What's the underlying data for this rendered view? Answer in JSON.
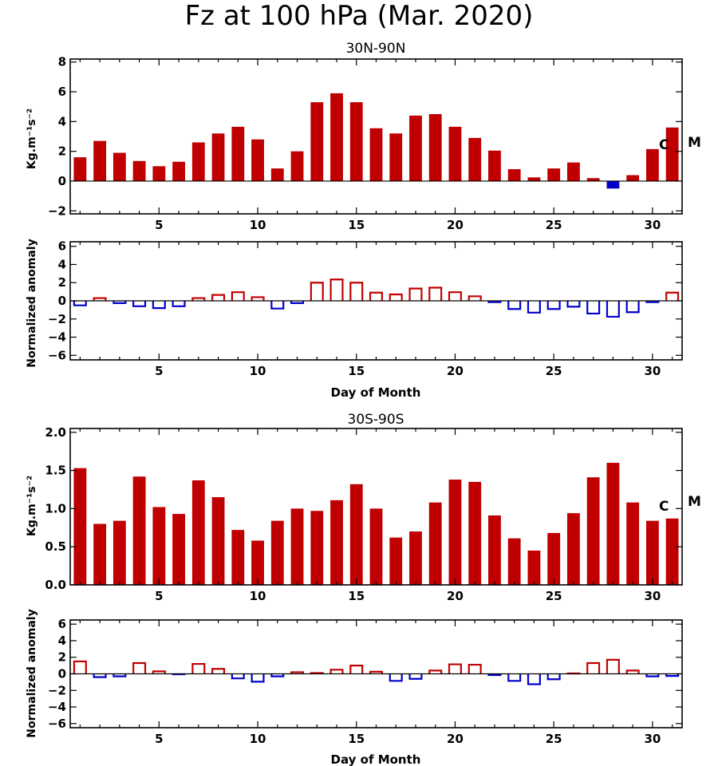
{
  "figure": {
    "title": "Fz at 100 hPa (Mar. 2020)"
  },
  "colors": {
    "positive": "#c00000",
    "negative": "#0000cc"
  },
  "chart_data": [
    {
      "id": "nh_fz",
      "type": "bar",
      "style": "filled",
      "title": "30N-90N",
      "xlabel": "",
      "ylabel": "Kg.m⁻¹s⁻²",
      "xlim": [
        0.5,
        31.5
      ],
      "ylim": [
        -2.2,
        8.2
      ],
      "x_ticks": [
        5,
        10,
        15,
        20,
        25,
        30
      ],
      "y_ticks": [
        -2,
        0,
        2,
        4,
        6,
        8
      ],
      "y_tick_labels": [
        "−2",
        "0",
        "2",
        "4",
        "6",
        "8"
      ],
      "x": [
        1,
        2,
        3,
        4,
        5,
        6,
        7,
        8,
        9,
        10,
        11,
        12,
        13,
        14,
        15,
        16,
        17,
        18,
        19,
        20,
        21,
        22,
        23,
        24,
        25,
        26,
        27,
        28,
        29,
        30,
        31
      ],
      "values": [
        1.6,
        2.7,
        1.9,
        1.35,
        1.0,
        1.3,
        2.6,
        3.2,
        3.65,
        2.8,
        0.85,
        2.0,
        5.3,
        5.9,
        5.3,
        3.55,
        3.2,
        4.4,
        4.5,
        3.65,
        2.9,
        2.05,
        0.8,
        0.25,
        0.85,
        1.25,
        0.2,
        -0.5,
        0.4,
        2.15,
        3.6
      ],
      "labels": [
        "C",
        "M"
      ]
    },
    {
      "id": "nh_anom",
      "type": "bar",
      "style": "outline",
      "title": "",
      "xlabel": "Day of Month",
      "ylabel": "Normalized anomaly",
      "xlim": [
        0.5,
        31.5
      ],
      "ylim": [
        -6.5,
        6.5
      ],
      "x_ticks": [
        5,
        10,
        15,
        20,
        25,
        30
      ],
      "y_ticks": [
        -6,
        -4,
        -2,
        0,
        2,
        4,
        6
      ],
      "y_tick_labels": [
        "−6",
        "−4",
        "−2",
        "0",
        "2",
        "4",
        "6"
      ],
      "x": [
        1,
        2,
        3,
        4,
        5,
        6,
        7,
        8,
        9,
        10,
        11,
        12,
        13,
        14,
        15,
        16,
        17,
        18,
        19,
        20,
        21,
        22,
        23,
        24,
        25,
        26,
        27,
        28,
        29,
        30,
        31
      ],
      "values": [
        -0.5,
        0.3,
        -0.25,
        -0.6,
        -0.8,
        -0.6,
        0.3,
        0.65,
        0.95,
        0.4,
        -0.85,
        -0.25,
        2.0,
        2.35,
        2.0,
        0.9,
        0.7,
        1.35,
        1.45,
        0.95,
        0.5,
        -0.15,
        -0.9,
        -1.3,
        -0.9,
        -0.65,
        -1.4,
        -1.75,
        -1.25,
        -0.15,
        0.9
      ]
    },
    {
      "id": "sh_fz",
      "type": "bar",
      "style": "filled",
      "title": "30S-90S",
      "xlabel": "",
      "ylabel": "Kg.m⁻¹s⁻²",
      "xlim": [
        0.5,
        31.5
      ],
      "ylim": [
        0.0,
        2.05
      ],
      "x_ticks": [
        5,
        10,
        15,
        20,
        25,
        30
      ],
      "y_ticks": [
        0.0,
        0.5,
        1.0,
        1.5,
        2.0
      ],
      "y_tick_labels": [
        "0.0",
        "0.5",
        "1.0",
        "1.5",
        "2.0"
      ],
      "x": [
        1,
        2,
        3,
        4,
        5,
        6,
        7,
        8,
        9,
        10,
        11,
        12,
        13,
        14,
        15,
        16,
        17,
        18,
        19,
        20,
        21,
        22,
        23,
        24,
        25,
        26,
        27,
        28,
        29,
        30,
        31
      ],
      "values": [
        1.53,
        0.8,
        0.84,
        1.42,
        1.02,
        0.93,
        1.37,
        1.15,
        0.72,
        0.58,
        0.84,
        1.0,
        0.97,
        1.11,
        1.32,
        1.0,
        0.62,
        0.7,
        1.08,
        1.38,
        1.35,
        0.91,
        0.61,
        0.45,
        0.68,
        0.94,
        1.41,
        1.6,
        1.08,
        0.84,
        0.87
      ],
      "labels": [
        "C",
        "M"
      ]
    },
    {
      "id": "sh_anom",
      "type": "bar",
      "style": "outline",
      "title": "",
      "xlabel": "Day of Month",
      "ylabel": "Normalized anomaly",
      "xlim": [
        0.5,
        31.5
      ],
      "ylim": [
        -6.5,
        6.5
      ],
      "x_ticks": [
        5,
        10,
        15,
        20,
        25,
        30
      ],
      "y_ticks": [
        -6,
        -4,
        -2,
        0,
        2,
        4,
        6
      ],
      "y_tick_labels": [
        "−6",
        "−4",
        "−2",
        "0",
        "2",
        "4",
        "6"
      ],
      "x": [
        1,
        2,
        3,
        4,
        5,
        6,
        7,
        8,
        9,
        10,
        11,
        12,
        13,
        14,
        15,
        16,
        17,
        18,
        19,
        20,
        21,
        22,
        23,
        24,
        25,
        26,
        27,
        28,
        29,
        30,
        31
      ],
      "values": [
        1.5,
        -0.4,
        -0.3,
        1.3,
        0.3,
        -0.05,
        1.2,
        0.6,
        -0.55,
        -0.95,
        -0.3,
        0.2,
        0.1,
        0.5,
        1.0,
        0.25,
        -0.85,
        -0.6,
        0.4,
        1.15,
        1.1,
        -0.15,
        -0.85,
        -1.25,
        -0.65,
        0.05,
        1.3,
        1.7,
        0.4,
        -0.3,
        -0.25
      ]
    }
  ]
}
